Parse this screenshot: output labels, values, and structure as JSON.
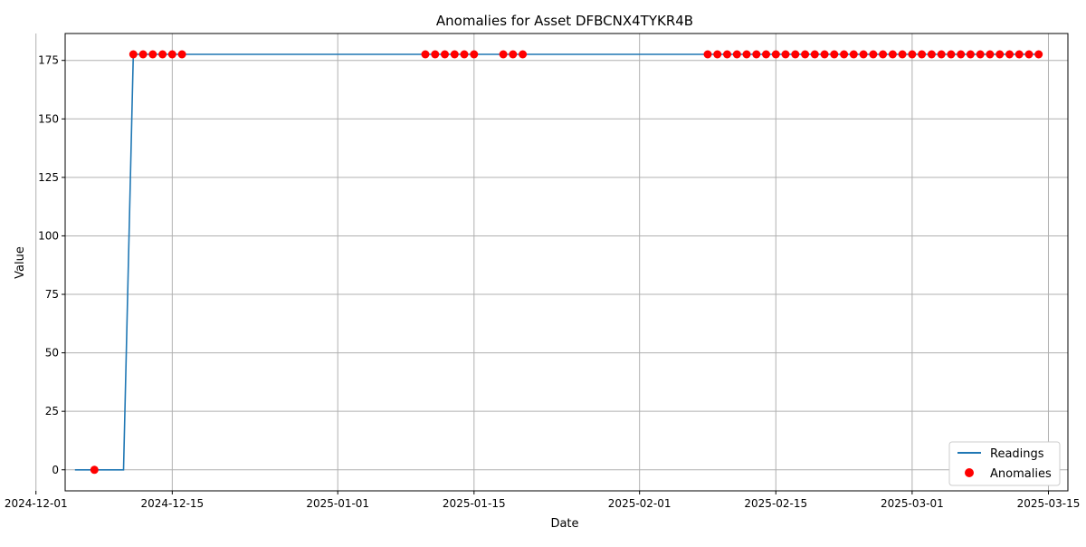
{
  "chart_data": {
    "type": "line",
    "title": "Anomalies for Asset DFBCNX4TYKR4B",
    "xlabel": "Date",
    "ylabel": "Value",
    "grid": true,
    "legend_position": "lower-right",
    "xlim": [
      "2024-12-04",
      "2025-03-17"
    ],
    "ylim": [
      -9,
      186.5
    ],
    "x_ticks": [
      "2024-12-01",
      "2024-12-15",
      "2025-01-01",
      "2025-01-15",
      "2025-02-01",
      "2025-02-15",
      "2025-03-01",
      "2025-03-15"
    ],
    "y_ticks": [
      0,
      25,
      50,
      75,
      100,
      125,
      150,
      175
    ],
    "colors": {
      "readings": "#1f77b4",
      "anomalies": "#ff0000",
      "grid": "#b0b0b0"
    },
    "series": [
      {
        "name": "Readings",
        "kind": "line",
        "x": [
          "2024-12-05",
          "2024-12-10",
          "2024-12-11",
          "2025-03-14"
        ],
        "y": [
          0,
          0,
          177.6,
          177.6
        ]
      },
      {
        "name": "Anomalies",
        "kind": "scatter",
        "x": [
          "2024-12-07",
          "2024-12-11",
          "2024-12-12",
          "2024-12-13",
          "2024-12-14",
          "2024-12-15",
          "2024-12-16",
          "2025-01-10",
          "2025-01-11",
          "2025-01-12",
          "2025-01-13",
          "2025-01-14",
          "2025-01-15",
          "2025-01-18",
          "2025-01-19",
          "2025-01-20",
          "2025-02-08",
          "2025-02-09",
          "2025-02-10",
          "2025-02-11",
          "2025-02-12",
          "2025-02-13",
          "2025-02-14",
          "2025-02-15",
          "2025-02-16",
          "2025-02-17",
          "2025-02-18",
          "2025-02-19",
          "2025-02-20",
          "2025-02-21",
          "2025-02-22",
          "2025-02-23",
          "2025-02-24",
          "2025-02-25",
          "2025-02-26",
          "2025-02-27",
          "2025-02-28",
          "2025-03-01",
          "2025-03-02",
          "2025-03-03",
          "2025-03-04",
          "2025-03-05",
          "2025-03-06",
          "2025-03-07",
          "2025-03-08",
          "2025-03-09",
          "2025-03-10",
          "2025-03-11",
          "2025-03-12",
          "2025-03-13",
          "2025-03-14"
        ],
        "y": [
          0,
          177.6,
          177.6,
          177.6,
          177.6,
          177.6,
          177.6,
          177.6,
          177.6,
          177.6,
          177.6,
          177.6,
          177.6,
          177.6,
          177.6,
          177.6,
          177.6,
          177.6,
          177.6,
          177.6,
          177.6,
          177.6,
          177.6,
          177.6,
          177.6,
          177.6,
          177.6,
          177.6,
          177.6,
          177.6,
          177.6,
          177.6,
          177.6,
          177.6,
          177.6,
          177.6,
          177.6,
          177.6,
          177.6,
          177.6,
          177.6,
          177.6,
          177.6,
          177.6,
          177.6,
          177.6,
          177.6,
          177.6,
          177.6,
          177.6,
          177.6
        ]
      }
    ]
  }
}
